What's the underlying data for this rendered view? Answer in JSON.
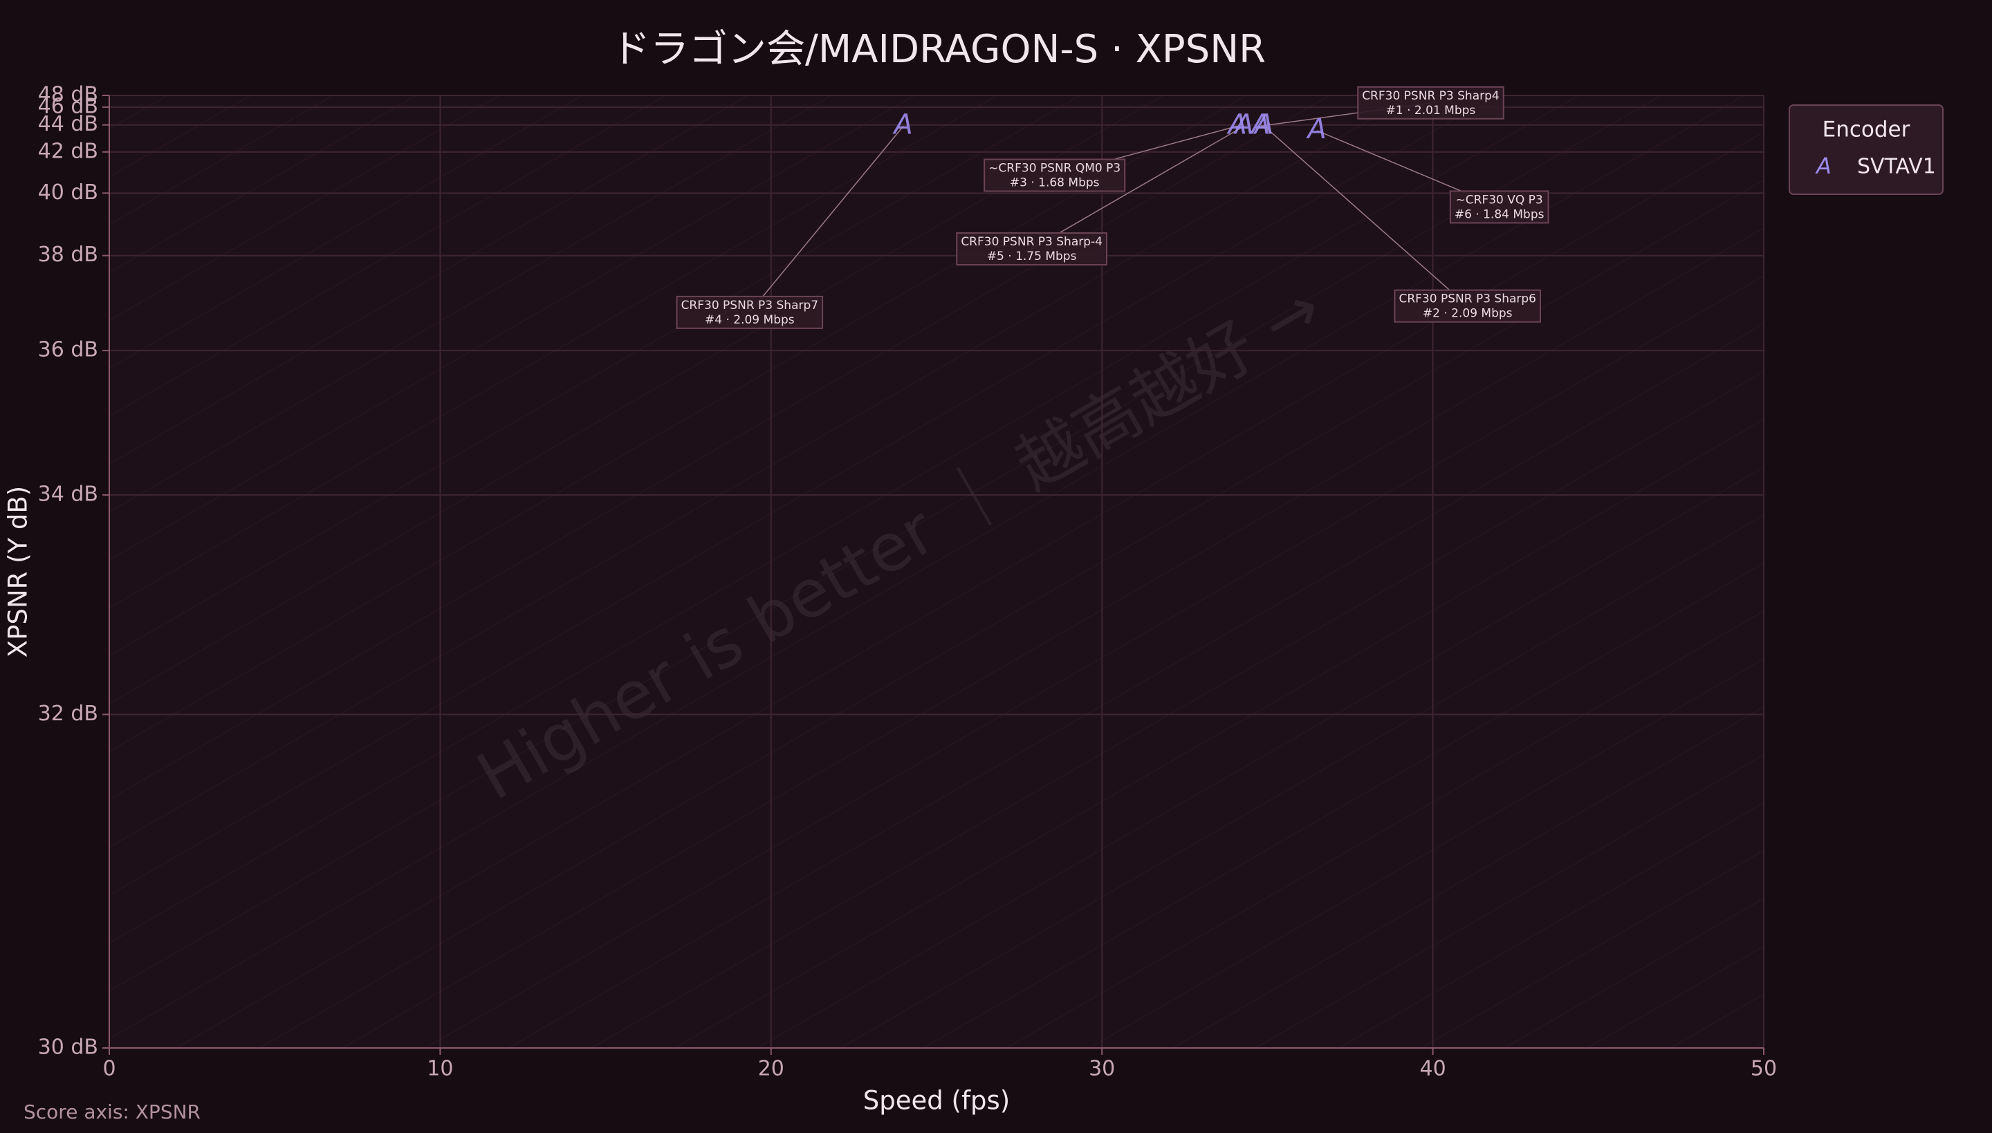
{
  "chart_data": {
    "type": "scatter",
    "title": "ドラゴン会/MAIDRAGON-S · XPSNR",
    "x_label": "Speed (fps)",
    "y_label": "XPSNR (Y dB)",
    "xlim": [
      0,
      50
    ],
    "xticks": [
      0,
      10,
      20,
      30,
      40,
      50
    ],
    "ylim": [
      30,
      48
    ],
    "y_scale": "exponential",
    "yticks": [
      {
        "value": 30,
        "label": "30 dB"
      },
      {
        "value": 32,
        "label": "32 dB"
      },
      {
        "value": 34,
        "label": "34 dB"
      },
      {
        "value": 36,
        "label": "36 dB"
      },
      {
        "value": 38,
        "label": "38 dB"
      },
      {
        "value": 40,
        "label": "40 dB"
      },
      {
        "value": 42,
        "label": "42 dB"
      },
      {
        "value": 44,
        "label": "44 dB"
      },
      {
        "value": 46,
        "label": "46 dB"
      },
      {
        "value": 48,
        "label": "48 dB"
      }
    ],
    "grid": true,
    "legend_title": "Encoder",
    "legend": "top-right-outside",
    "series": [
      {
        "name": "SVTAV1",
        "color": "#9d8cf0",
        "marker": "A",
        "x": [
          34.8,
          34.9,
          34.1,
          24.0,
          34.3,
          36.5
        ],
        "y": [
          43.9,
          43.9,
          43.9,
          43.9,
          43.9,
          43.5
        ],
        "labels": [
          "CRF30 PSNR P3 Sharp4",
          "CRF30 PSNR P3 Sharp6",
          "~CRF30 PSNR QM0 P3",
          "CRF30 PSNR P3 Sharp7",
          "CRF30 PSNR P3 Sharp-4",
          "~CRF30 VQ P3"
        ],
        "details": [
          "#1 · 2.01 Mbps",
          "#2 · 2.09 Mbps",
          "#3 · 1.68 Mbps",
          "#4 · 2.09 Mbps",
          "#5 · 1.75 Mbps",
          "#6 · 1.84 Mbps"
        ]
      }
    ],
    "watermark": "Higher is better ｜ 越高越好 →",
    "footnote": "Score axis: XPSNR"
  }
}
